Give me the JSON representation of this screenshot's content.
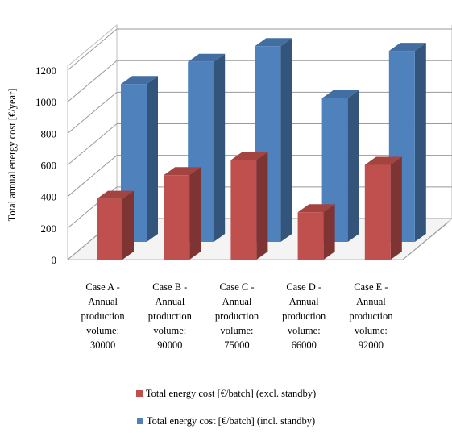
{
  "chart_data": {
    "type": "bar",
    "categories": [
      [
        "Case A -",
        "Annual",
        "production",
        "volume:",
        "30000"
      ],
      [
        "Case B -",
        "Annual",
        "production",
        "volume:",
        "90000"
      ],
      [
        "Case C -",
        "Annual",
        "production",
        "volume:",
        "75000"
      ],
      [
        "Case D -",
        "Annual",
        "production",
        "volume:",
        "66000"
      ],
      [
        "Case E -",
        "Annual",
        "production",
        "volume:",
        "92000"
      ]
    ],
    "series": [
      {
        "name": "Total energy cost [€/batch] (excl. standby)",
        "color": "#C0504D",
        "values": [
          385,
          535,
          630,
          300,
          600
        ]
      },
      {
        "name": "Total energy cost [€/batch] (incl. standby)",
        "color": "#4F81BD",
        "values": [
          1000,
          1140,
          1240,
          910,
          1210
        ]
      }
    ],
    "ylabel": "Total annual energy cost [€/year]",
    "ylim": [
      0,
      1200
    ],
    "yticks": [
      0,
      200,
      400,
      600,
      800,
      1000,
      1200
    ],
    "grid": true,
    "legend_position": "bottom",
    "style": "3d-clustered-column"
  }
}
